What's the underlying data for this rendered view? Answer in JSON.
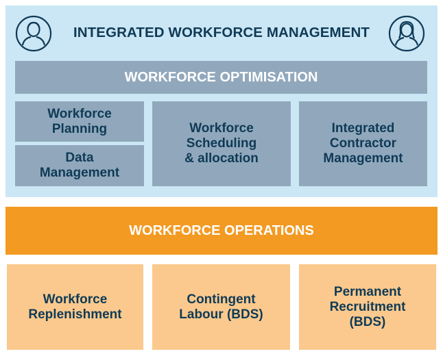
{
  "header": {
    "title": "INTEGRATED WORKFORCE MANAGEMENT"
  },
  "icons": {
    "left": "male-user-icon",
    "right": "female-user-icon"
  },
  "optimisation": {
    "label": "WORKFORCE OPTIMISATION",
    "boxes": [
      {
        "label": "Workforce\nPlanning"
      },
      {
        "label": "Data\nManagement"
      },
      {
        "label": "Workforce\nScheduling\n& allocation"
      },
      {
        "label": "Integrated\nContractor\nManagement"
      }
    ]
  },
  "operations": {
    "label": "WORKFORCE OPERATIONS",
    "boxes": [
      {
        "label": "Workforce\nReplenishment"
      },
      {
        "label": "Contingent\nLabour (BDS)"
      },
      {
        "label": "Permanent\nRecruitment\n(BDS)"
      }
    ]
  },
  "colors": {
    "top_panel_bg": "#cbe6f4",
    "grey_box": "#91a8bc",
    "dark_text": "#0f3a56",
    "orange_bar": "#f39a22",
    "orange_box": "#fbc98d"
  }
}
